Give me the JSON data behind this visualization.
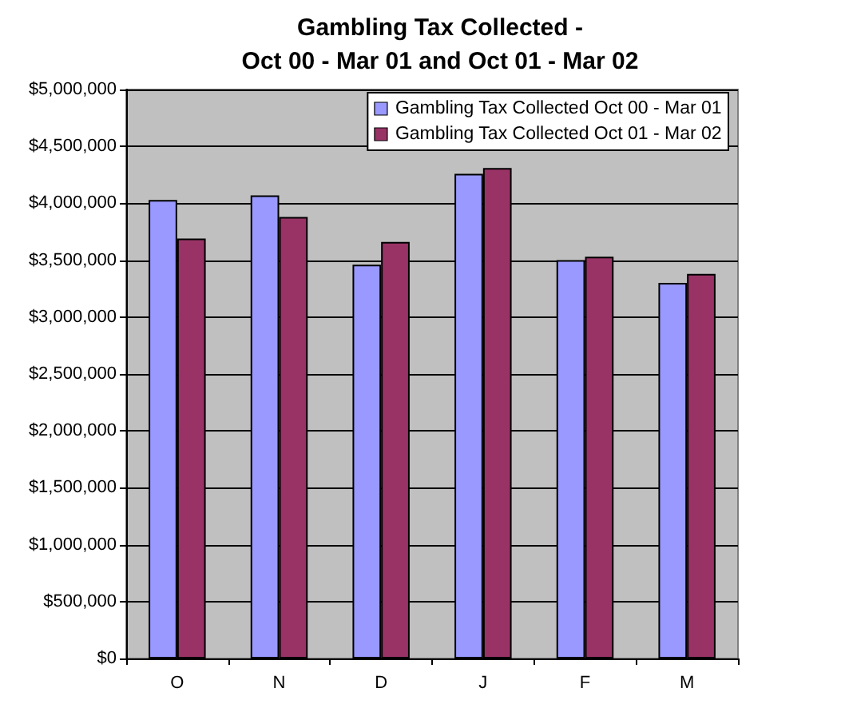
{
  "chart_data": {
    "type": "bar",
    "title": "Gambling Tax Collected -\nOct 00 - Mar 01 and Oct 01 - Mar 02",
    "categories": [
      "O",
      "N",
      "D",
      "J",
      "F",
      "M"
    ],
    "series": [
      {
        "name": "Gambling Tax Collected Oct 00 - Mar 01",
        "color": "#9999ff",
        "values": [
          4030000,
          4070000,
          3460000,
          4260000,
          3500000,
          3300000
        ]
      },
      {
        "name": "Gambling Tax Collected Oct 01 - Mar 02",
        "color": "#993366",
        "values": [
          3690000,
          3880000,
          3660000,
          4310000,
          3530000,
          3380000
        ]
      }
    ],
    "ylim": [
      0,
      5000000
    ],
    "yticks": [
      {
        "value": 0,
        "label": "$0"
      },
      {
        "value": 500000,
        "label": "$500,000"
      },
      {
        "value": 1000000,
        "label": "$1,000,000"
      },
      {
        "value": 1500000,
        "label": "$1,500,000"
      },
      {
        "value": 2000000,
        "label": "$2,000,000"
      },
      {
        "value": 2500000,
        "label": "$2,500,000"
      },
      {
        "value": 3000000,
        "label": "$3,000,000"
      },
      {
        "value": 3500000,
        "label": "$3,500,000"
      },
      {
        "value": 4000000,
        "label": "$4,000,000"
      },
      {
        "value": 4500000,
        "label": "$4,500,000"
      },
      {
        "value": 5000000,
        "label": "$5,000,000"
      }
    ],
    "grid": "y",
    "legend": "top right"
  }
}
